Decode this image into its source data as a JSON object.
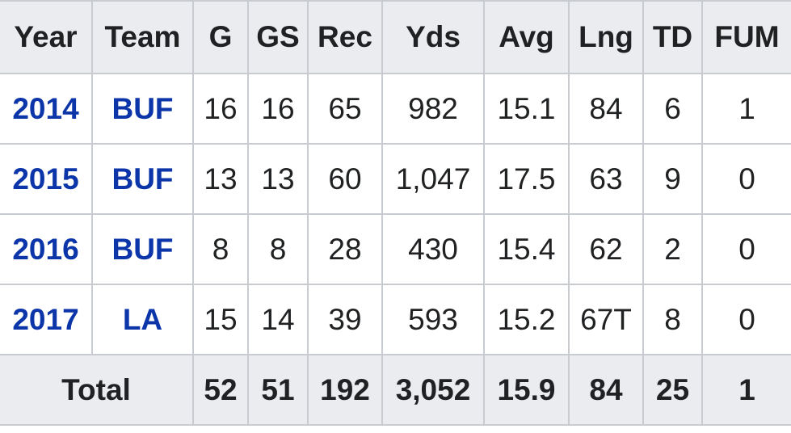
{
  "table": {
    "header": [
      "Year",
      "Team",
      "G",
      "GS",
      "Rec",
      "Yds",
      "Avg",
      "Lng",
      "TD",
      "FUM"
    ],
    "rows": [
      [
        "2014",
        "BUF",
        "16",
        "16",
        "65",
        "982",
        "15.1",
        "84",
        "6",
        "1"
      ],
      [
        "2015",
        "BUF",
        "13",
        "13",
        "60",
        "1,047",
        "17.5",
        "63",
        "9",
        "0"
      ],
      [
        "2016",
        "BUF",
        "8",
        "8",
        "28",
        "430",
        "15.4",
        "62",
        "2",
        "0"
      ],
      [
        "2017",
        "LA",
        "15",
        "14",
        "39",
        "593",
        "15.2",
        "67T",
        "8",
        "0"
      ]
    ],
    "total": [
      "Total",
      "52",
      "51",
      "192",
      "3,052",
      "15.9",
      "84",
      "25",
      "1"
    ]
  }
}
